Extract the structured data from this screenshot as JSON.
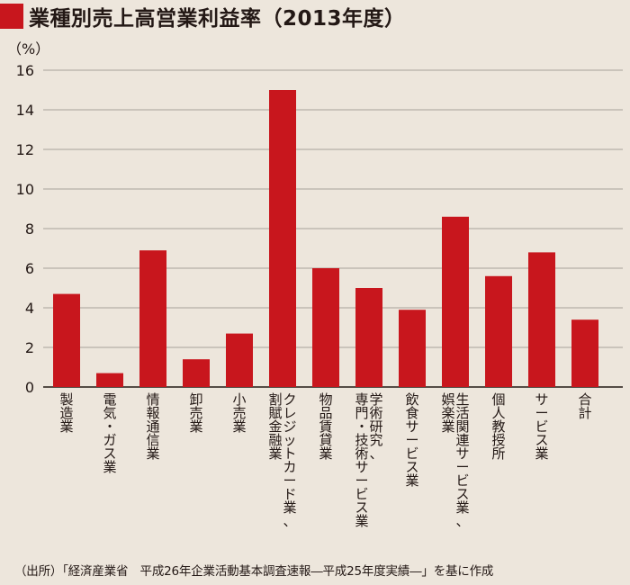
{
  "title": "業種別売上高営業利益率（2013年度）",
  "source": "（出所）「経済産業省　平成26年企業活動基本調査速報―平成25年度実績―」を基に作成",
  "colors": {
    "bar": "#c8161d",
    "background": "#ede6dc",
    "grid": "#8f8a85",
    "title_mark": "#c8161d"
  },
  "chart_data": {
    "type": "bar",
    "title": "業種別売上高営業利益率（2013年度）",
    "ylabel": "（%）",
    "xlabel": "",
    "ylim": [
      0,
      16
    ],
    "yticks": [
      0,
      2,
      4,
      6,
      8,
      10,
      12,
      14,
      16
    ],
    "grid": true,
    "legend": "none",
    "categories": [
      "製造業",
      "電気・ガス業",
      "情報通信業",
      "卸売業",
      "小売業",
      "クレジットカード業、割賦金融業",
      "物品賃貸業",
      "学術研究、専門・技術サービス業",
      "飲食サービス業",
      "生活関連サービス業、娯楽業",
      "個人教授所",
      "サービス業",
      "合計"
    ],
    "category_lines": [
      [
        "製造業"
      ],
      [
        "電気・ガス業"
      ],
      [
        "情報通信業"
      ],
      [
        "卸売業"
      ],
      [
        "小売業"
      ],
      [
        "クレジットカード業、",
        "割賦金融業"
      ],
      [
        "物品賃貸業"
      ],
      [
        "学術研究、",
        "専門・技術サービス業"
      ],
      [
        "飲食サービス業"
      ],
      [
        "生活関連サービス業、",
        "娯楽業"
      ],
      [
        "個人教授所"
      ],
      [
        "サービス業"
      ],
      [
        "合計"
      ]
    ],
    "values": [
      4.7,
      0.7,
      6.9,
      1.4,
      2.7,
      15.0,
      6.0,
      5.0,
      3.9,
      8.6,
      5.6,
      6.8,
      3.4
    ]
  }
}
